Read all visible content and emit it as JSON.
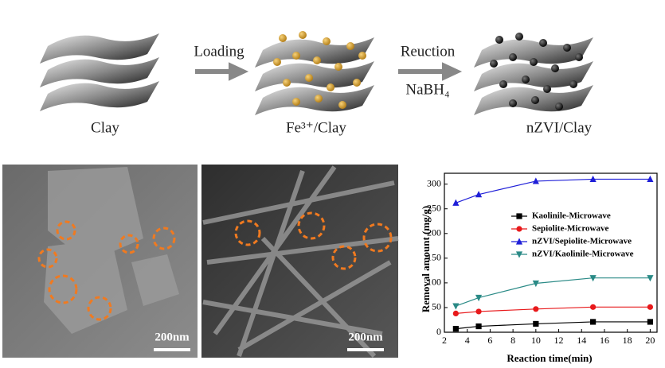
{
  "diagram": {
    "stages": [
      "Clay",
      "Fe³⁺/Clay",
      "nZVI/Clay"
    ],
    "arrows": [
      {
        "top": "Loading"
      },
      {
        "top": "Reuction",
        "bottom": "NaBH₄"
      }
    ]
  },
  "images": {
    "scale_bars": [
      "200nm",
      "200nm"
    ]
  },
  "chart_data": {
    "type": "line",
    "x_label": "Reaction time(min)",
    "y_label": "Removal amount (mg/g)",
    "x": [
      3,
      5,
      10,
      15,
      20
    ],
    "series": [
      {
        "name": "Kaolinile-Microwave",
        "color": "#000000",
        "marker": "square",
        "values": [
          7,
          12,
          17,
          21,
          21
        ]
      },
      {
        "name": "Sepiolite-Microwave",
        "color": "#e8191b",
        "marker": "circle",
        "values": [
          38,
          42,
          47,
          51,
          51
        ]
      },
      {
        "name": "nZVI/Sepiolite-Microwave",
        "color": "#1f1fd8",
        "marker": "triangle-up",
        "values": [
          262,
          279,
          306,
          310,
          310
        ]
      },
      {
        "name": "nZVI/Kaolinile-Microwave",
        "color": "#2a8a86",
        "marker": "triangle-down",
        "values": [
          53,
          70,
          99,
          110,
          110
        ]
      }
    ],
    "xlim": [
      2,
      20.6
    ],
    "xticks": [
      2,
      4,
      6,
      8,
      10,
      12,
      14,
      16,
      18,
      20
    ],
    "ylim": [
      0,
      322
    ],
    "yticks": [
      0,
      50,
      100,
      150,
      200,
      250,
      300
    ],
    "legend": "upper-right"
  }
}
